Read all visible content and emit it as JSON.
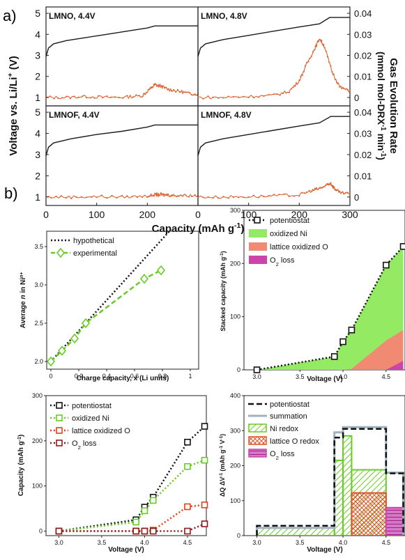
{
  "panel_labels": [
    "a)",
    "b)"
  ],
  "colors": {
    "voltage_line": "#1a1a1a",
    "gas_line": "#e0622c",
    "experimental": "#66cc22",
    "oxidized_ni": "#94ea62",
    "lattice_o": "#f08a72",
    "o2_loss": "#cc44aa",
    "summation": "#9eb3bf",
    "ni_redox": "#66cc22",
    "lattice_o_redox": "#e0522c"
  },
  "chart_data": [
    {
      "id": "gas-evolution-grid",
      "type": "line",
      "xlabel": "Capacity (mAh g-1)",
      "xticks": [
        "0",
        "100",
        "200",
        "300"
      ],
      "xlim": [
        0,
        300
      ],
      "ylabel_left": "Voltage vs. Li/Li+ (V)",
      "ylim_left": [
        0.6,
        5.3
      ],
      "yticks_left": [
        "1",
        "2",
        "3",
        "4",
        "5"
      ],
      "ylabel_right": "Gas Evolution Rate (mmol mol-DRX-1 min-1)",
      "ylim_right": [
        -0.004,
        0.043
      ],
      "yticks_right": [
        "0",
        "0.01",
        "0.02",
        "0.03",
        "0.04"
      ],
      "panels": [
        {
          "title": "LMNO, 4.4V",
          "voltage": {
            "x": [
              0,
              5,
              15,
              40,
              80,
              120,
              160,
              200,
              215,
              218,
              235,
              300
            ],
            "y": [
              2.95,
              3.35,
              3.55,
              3.7,
              3.85,
              4.0,
              4.15,
              4.3,
              4.4,
              4.4,
              4.4,
              4.4
            ]
          },
          "gas": {
            "x": [
              0,
              40,
              80,
              120,
              160,
              190,
              205,
              215,
              225,
              240,
              260,
              280,
              300
            ],
            "y": [
              0.0,
              0.0,
              0.0005,
              0.0,
              0.0002,
              0.0008,
              0.004,
              0.006,
              0.0055,
              0.004,
              0.003,
              0.002,
              0.0015
            ]
          }
        },
        {
          "title": "LMNO, 4.8V",
          "voltage": {
            "x": [
              0,
              5,
              15,
              50,
              100,
              150,
              200,
              240,
              260,
              262,
              300
            ],
            "y": [
              2.95,
              3.35,
              3.55,
              3.75,
              3.95,
              4.15,
              4.35,
              4.5,
              4.8,
              4.8,
              4.8
            ]
          },
          "gas": {
            "x": [
              0,
              50,
              100,
              150,
              180,
              200,
              215,
              230,
              240,
              250,
              265,
              280,
              300
            ],
            "y": [
              0.0,
              0.0,
              0.0005,
              0.001,
              0.003,
              0.008,
              0.016,
              0.023,
              0.028,
              0.024,
              0.012,
              0.005,
              0.003
            ]
          }
        },
        {
          "title": "LMNOF, 4.4V",
          "voltage": {
            "x": [
              0,
              5,
              15,
              50,
              100,
              150,
              200,
              215,
              218,
              235,
              300
            ],
            "y": [
              2.95,
              3.35,
              3.55,
              3.75,
              3.95,
              4.1,
              4.3,
              4.4,
              4.4,
              4.4,
              4.4
            ]
          },
          "gas": {
            "x": [
              0,
              50,
              100,
              150,
              200,
              215,
              225,
              235,
              250,
              270,
              300
            ],
            "y": [
              0.0,
              0.0,
              0.0002,
              0.0,
              0.0005,
              0.001,
              0.0012,
              0.001,
              0.0008,
              0.0008,
              0.0006
            ]
          }
        },
        {
          "title": "LMNOF, 4.8V",
          "voltage": {
            "x": [
              0,
              5,
              15,
              50,
              100,
              150,
              200,
              240,
              262,
              265,
              300
            ],
            "y": [
              2.95,
              3.35,
              3.55,
              3.75,
              3.95,
              4.15,
              4.35,
              4.5,
              4.8,
              4.8,
              4.8
            ]
          },
          "gas": {
            "x": [
              0,
              50,
              100,
              150,
              200,
              225,
              240,
              255,
              262,
              270,
              280,
              300
            ],
            "y": [
              0.0,
              0.0,
              0.0002,
              0.0005,
              0.001,
              0.003,
              0.004,
              0.0055,
              0.0065,
              0.004,
              0.002,
              0.0015
            ]
          }
        }
      ]
    },
    {
      "id": "ni-oxidation",
      "type": "line",
      "xlabel": "Charge capacity, x (Li units)",
      "ylabel": "Average n in Ni n+",
      "xlim": [
        -0.03,
        1.06
      ],
      "ylim": [
        1.9,
        3.7
      ],
      "xticks": [
        0,
        0.2,
        0.4,
        0.6,
        0.8,
        1
      ],
      "yticks": [
        2.0,
        2.5,
        3.0,
        3.5
      ],
      "series": [
        {
          "name": "hypothetical",
          "x": [
            0,
            0.85
          ],
          "y": [
            2.0,
            3.7
          ]
        },
        {
          "name": "experimental",
          "x": [
            0,
            0.08,
            0.17,
            0.25,
            0.67,
            0.79
          ],
          "y": [
            2.0,
            2.14,
            2.3,
            2.5,
            3.08,
            3.19
          ]
        }
      ]
    },
    {
      "id": "stacked-capacity",
      "type": "area",
      "xlabel": "Voltage (V)",
      "ylabel": "Stacked capacity (mAh g-1)",
      "xlim": [
        2.85,
        4.72
      ],
      "ylim": [
        0,
        300
      ],
      "xticks": [
        3.0,
        3.5,
        4.0,
        4.5
      ],
      "yticks": [
        0,
        100,
        200,
        300
      ],
      "series": [
        {
          "name": "potentiostat",
          "x": [
            3.0,
            3.9,
            4.0,
            4.1,
            4.5,
            4.7
          ],
          "y": [
            0,
            25,
            53,
            75,
            197,
            232
          ]
        },
        {
          "name": "oxidized Ni",
          "x": [
            3.0,
            3.9,
            4.0,
            4.1,
            4.5,
            4.7
          ],
          "y": [
            0,
            25,
            53,
            75,
            197,
            232
          ]
        },
        {
          "name": "lattice oxidized O",
          "x": [
            3.0,
            3.9,
            4.0,
            4.1,
            4.5,
            4.7
          ],
          "y": [
            0,
            0,
            0,
            2,
            55,
            75
          ]
        },
        {
          "name": "O2 loss",
          "x": [
            3.0,
            3.9,
            4.0,
            4.1,
            4.5,
            4.7
          ],
          "y": [
            0,
            0,
            0,
            0,
            0,
            17
          ]
        }
      ]
    },
    {
      "id": "capacity-components",
      "type": "line",
      "xlabel": "Voltage (V)",
      "ylabel": "Capacity (mAh g-1)",
      "xlim": [
        2.85,
        4.72
      ],
      "ylim": [
        -10,
        300
      ],
      "xticks": [
        3.0,
        3.5,
        4.0,
        4.5
      ],
      "yticks": [
        0,
        100,
        200,
        300
      ],
      "series": [
        {
          "name": "potentiostat",
          "x": [
            3.0,
            3.9,
            4.0,
            4.1,
            4.5,
            4.7
          ],
          "y": [
            0,
            25,
            53,
            75,
            197,
            232
          ]
        },
        {
          "name": "oxidized Ni",
          "x": [
            3.0,
            3.9,
            4.0,
            4.1,
            4.5,
            4.7
          ],
          "y": [
            0,
            20,
            45,
            68,
            143,
            157
          ]
        },
        {
          "name": "lattice oxidized O",
          "x": [
            3.0,
            3.9,
            4.0,
            4.1,
            4.5,
            4.7
          ],
          "y": [
            0,
            0,
            0,
            2,
            54,
            58
          ]
        },
        {
          "name": "O2 loss",
          "x": [
            3.0,
            3.9,
            4.0,
            4.1,
            4.5,
            4.7
          ],
          "y": [
            0,
            0,
            0,
            0,
            0,
            16
          ]
        }
      ]
    },
    {
      "id": "differential-capacity",
      "type": "bar",
      "xlabel": "Voltage (V)",
      "ylabel": "ΔQ ΔV-1 (mAh g-1 V-1)",
      "xlim": [
        2.85,
        4.72
      ],
      "ylim": [
        0,
        400
      ],
      "xticks": [
        3.0,
        3.5,
        4.0,
        4.5
      ],
      "yticks": [
        0,
        100,
        200,
        300,
        400
      ],
      "edges": [
        3.0,
        3.9,
        4.0,
        4.1,
        4.5,
        4.7
      ],
      "series": [
        {
          "name": "potentiostat",
          "values": [
            28,
            280,
            305,
            305,
            178
          ]
        },
        {
          "name": "summation",
          "values": [
            22,
            295,
            310,
            310,
            180
          ]
        },
        {
          "name": "Ni redox",
          "values": [
            22,
            215,
            285,
            188,
            68
          ]
        },
        {
          "name": "lattice O redox",
          "values": [
            0,
            0,
            0,
            122,
            20
          ]
        },
        {
          "name": "O2 loss",
          "values": [
            0,
            0,
            0,
            0,
            80
          ]
        }
      ]
    }
  ]
}
